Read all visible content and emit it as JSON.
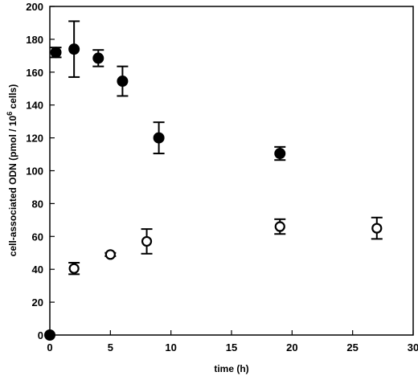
{
  "chart_data": {
    "type": "scatter",
    "xlabel": "time (h)",
    "ylabel_main": "cell-associated ODN (pmol / 10",
    "ylabel_sup": "6",
    "ylabel_tail": " cells)",
    "xlim": [
      0,
      30
    ],
    "ylim": [
      0,
      200
    ],
    "xticks": [
      0,
      5,
      10,
      15,
      20,
      25,
      30
    ],
    "yticks": [
      0,
      20,
      40,
      60,
      80,
      100,
      120,
      140,
      160,
      180,
      200
    ],
    "grid": false,
    "series": [
      {
        "marker": "filled-circle",
        "points": [
          {
            "x": 0,
            "y": 0,
            "err": 0
          },
          {
            "x": 0.5,
            "y": 172,
            "err": 3
          },
          {
            "x": 2,
            "y": 174,
            "err": 17
          },
          {
            "x": 4,
            "y": 168.5,
            "err": 5
          },
          {
            "x": 6,
            "y": 154.5,
            "err": 9
          },
          {
            "x": 9,
            "y": 120,
            "err": 9.5
          },
          {
            "x": 19,
            "y": 110.5,
            "err": 4
          }
        ]
      },
      {
        "marker": "open-circle",
        "points": [
          {
            "x": 2,
            "y": 40.5,
            "err": 3.5
          },
          {
            "x": 5,
            "y": 49,
            "err": 1
          },
          {
            "x": 8,
            "y": 57,
            "err": 7.5
          },
          {
            "x": 19,
            "y": 66,
            "err": 4.5
          },
          {
            "x": 27,
            "y": 65,
            "err": 6.5
          }
        ]
      }
    ]
  }
}
